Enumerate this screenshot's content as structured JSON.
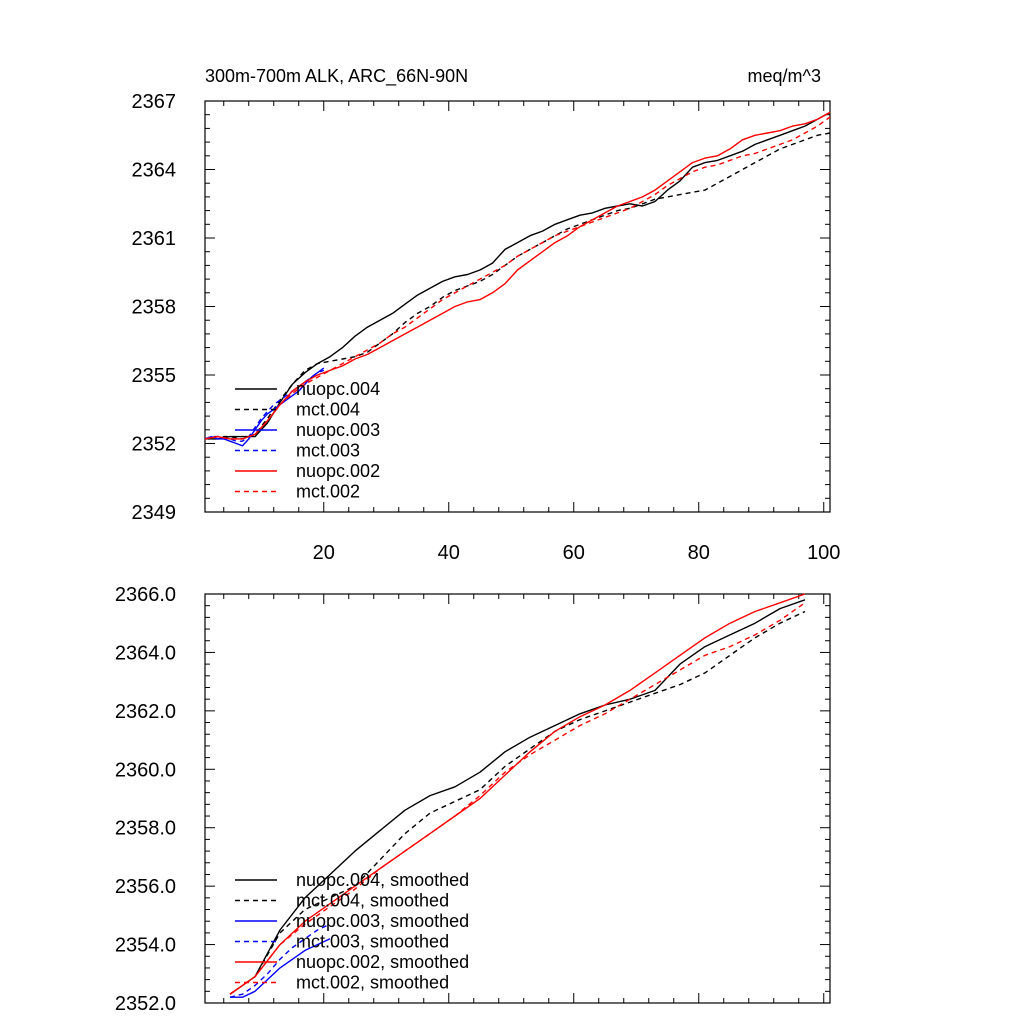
{
  "figure": {
    "title_left": "300m-700m ALK, ARC_66N-90N",
    "title_right": "meq/m^3"
  },
  "colors": {
    "black": "#000000",
    "blue": "#0000ff",
    "red": "#ff0000"
  },
  "chart_data": [
    {
      "type": "line",
      "title": "300m-700m ALK, ARC_66N-90N",
      "units": "meq/m^3",
      "xlabel": "",
      "ylabel": "",
      "xlim": [
        1,
        101
      ],
      "ylim": [
        2349,
        2367
      ],
      "xticks": [
        20,
        40,
        60,
        80,
        100
      ],
      "xtick_labels": [
        "20",
        "40",
        "60",
        "80",
        "100"
      ],
      "yticks": [
        2349,
        2352,
        2355,
        2358,
        2361,
        2364,
        2367
      ],
      "ytick_labels": [
        "2349",
        "2352",
        "2355",
        "2358",
        "2361",
        "2364",
        "2367"
      ],
      "legend_position": "bottom-left",
      "series": [
        {
          "name": "nuopc.004",
          "color": "#000000",
          "dash": "solid",
          "x": [
            1,
            3,
            5,
            7,
            9,
            11,
            13,
            15,
            17,
            19,
            21,
            23,
            25,
            27,
            29,
            31,
            33,
            35,
            37,
            39,
            41,
            43,
            45,
            47,
            49,
            51,
            53,
            55,
            57,
            59,
            61,
            63,
            65,
            67,
            69,
            71,
            73,
            75,
            77,
            79,
            81,
            83,
            85,
            87,
            89,
            91,
            93,
            95,
            97,
            99,
            101
          ],
          "y": [
            2352.2,
            2352.2,
            2352.3,
            2352.3,
            2352.3,
            2352.9,
            2353.8,
            2354.6,
            2355.1,
            2355.5,
            2355.8,
            2356.2,
            2356.7,
            2357.1,
            2357.4,
            2357.7,
            2358.1,
            2358.5,
            2358.8,
            2359.1,
            2359.3,
            2359.4,
            2359.6,
            2359.9,
            2360.5,
            2360.8,
            2361.1,
            2361.3,
            2361.6,
            2361.8,
            2362.0,
            2362.1,
            2362.3,
            2362.4,
            2362.5,
            2362.4,
            2362.6,
            2363.1,
            2363.5,
            2364.1,
            2364.3,
            2364.4,
            2364.6,
            2364.8,
            2365.1,
            2365.3,
            2365.5,
            2365.7,
            2365.9,
            2366.2,
            2366.5
          ]
        },
        {
          "name": "mct.004",
          "color": "#000000",
          "dash": "dashed",
          "x": [
            1,
            3,
            5,
            7,
            9,
            11,
            13,
            15,
            17,
            19,
            21,
            23,
            25,
            27,
            29,
            31,
            33,
            35,
            37,
            39,
            41,
            43,
            45,
            47,
            49,
            51,
            53,
            55,
            57,
            59,
            61,
            63,
            65,
            67,
            69,
            71,
            73,
            75,
            77,
            79,
            81,
            83,
            85,
            87,
            89,
            91,
            93,
            95,
            97,
            99,
            101
          ],
          "y": [
            2352.2,
            2352.3,
            2352.3,
            2352.2,
            2352.4,
            2353.1,
            2353.9,
            2354.6,
            2355.2,
            2355.5,
            2355.6,
            2355.7,
            2355.8,
            2356.0,
            2356.4,
            2356.8,
            2357.3,
            2357.7,
            2358.0,
            2358.4,
            2358.7,
            2358.9,
            2359.1,
            2359.4,
            2359.8,
            2360.2,
            2360.5,
            2360.8,
            2361.1,
            2361.4,
            2361.6,
            2361.8,
            2362.0,
            2362.2,
            2362.3,
            2362.5,
            2362.7,
            2362.8,
            2362.9,
            2363.0,
            2363.1,
            2363.4,
            2363.7,
            2364.0,
            2364.3,
            2364.6,
            2364.9,
            2365.1,
            2365.3,
            2365.5,
            2365.6
          ]
        },
        {
          "name": "nuopc.003",
          "color": "#0000ff",
          "dash": "solid",
          "x": [
            1,
            2,
            3,
            4,
            5,
            6,
            7,
            8,
            9,
            10,
            11,
            12,
            13,
            14,
            15,
            16,
            17,
            18,
            19,
            20
          ],
          "y": [
            2352.2,
            2352.3,
            2352.2,
            2352.2,
            2352.1,
            2352.0,
            2351.9,
            2352.2,
            2352.6,
            2353.0,
            2353.3,
            2353.5,
            2353.7,
            2353.9,
            2354.1,
            2354.3,
            2354.6,
            2354.9,
            2355.1,
            2355.3
          ]
        },
        {
          "name": "mct.003",
          "color": "#0000ff",
          "dash": "dashed",
          "x": [
            1,
            2,
            3,
            4,
            5,
            6,
            7,
            8,
            9,
            10,
            11,
            12,
            13,
            14,
            15,
            16,
            17,
            18,
            19,
            20
          ],
          "y": [
            2352.2,
            2352.3,
            2352.3,
            2352.2,
            2352.2,
            2352.1,
            2352.1,
            2352.3,
            2352.7,
            2353.1,
            2353.4,
            2353.7,
            2353.9,
            2354.1,
            2354.3,
            2354.5,
            2354.7,
            2354.9,
            2355.1,
            2355.2
          ]
        },
        {
          "name": "nuopc.002",
          "color": "#ff0000",
          "dash": "solid",
          "x": [
            1,
            3,
            5,
            7,
            9,
            11,
            13,
            15,
            17,
            19,
            21,
            23,
            25,
            27,
            29,
            31,
            33,
            35,
            37,
            39,
            41,
            43,
            45,
            47,
            49,
            51,
            53,
            55,
            57,
            59,
            61,
            63,
            65,
            67,
            69,
            71,
            73,
            75,
            77,
            79,
            81,
            83,
            85,
            87,
            89,
            91,
            93,
            95,
            97,
            99,
            101
          ],
          "y": [
            2352.2,
            2352.3,
            2352.2,
            2352.2,
            2352.4,
            2353.0,
            2353.7,
            2354.3,
            2354.7,
            2355.0,
            2355.2,
            2355.4,
            2355.7,
            2355.9,
            2356.2,
            2356.5,
            2356.8,
            2357.1,
            2357.4,
            2357.7,
            2358.0,
            2358.2,
            2358.3,
            2358.6,
            2359.0,
            2359.6,
            2360.0,
            2360.4,
            2360.8,
            2361.1,
            2361.5,
            2361.8,
            2362.1,
            2362.4,
            2362.6,
            2362.8,
            2363.1,
            2363.5,
            2363.9,
            2364.3,
            2364.5,
            2364.6,
            2364.9,
            2365.3,
            2365.5,
            2365.6,
            2365.7,
            2365.9,
            2366.0,
            2366.2,
            2366.5
          ]
        },
        {
          "name": "mct.002",
          "color": "#ff0000",
          "dash": "dashed",
          "x": [
            1,
            3,
            5,
            7,
            9,
            11,
            13,
            15,
            17,
            19,
            21,
            23,
            25,
            27,
            29,
            31,
            33,
            35,
            37,
            39,
            41,
            43,
            45,
            47,
            49,
            51,
            53,
            55,
            57,
            59,
            61,
            63,
            65,
            67,
            69,
            71,
            73,
            75,
            77,
            79,
            81,
            83,
            85,
            87,
            89,
            91,
            93,
            95,
            97,
            99,
            101
          ],
          "y": [
            2352.2,
            2352.3,
            2352.2,
            2352.2,
            2352.4,
            2353.0,
            2353.7,
            2354.2,
            2354.6,
            2354.9,
            2355.2,
            2355.5,
            2355.8,
            2356.1,
            2356.4,
            2356.8,
            2357.1,
            2357.5,
            2357.9,
            2358.3,
            2358.6,
            2358.9,
            2359.2,
            2359.5,
            2359.8,
            2360.2,
            2360.5,
            2360.8,
            2361.1,
            2361.3,
            2361.5,
            2361.7,
            2361.9,
            2362.1,
            2362.3,
            2362.6,
            2362.9,
            2363.3,
            2363.6,
            2363.9,
            2364.1,
            2364.2,
            2364.4,
            2364.6,
            2364.7,
            2364.9,
            2365.1,
            2365.3,
            2365.6,
            2365.9,
            2366.3
          ]
        }
      ]
    },
    {
      "type": "line",
      "title": "",
      "xlabel": "",
      "ylabel": "",
      "xlim": [
        1,
        101
      ],
      "ylim": [
        2352.0,
        2366.0
      ],
      "xticks": [
        20,
        40,
        60,
        80,
        100
      ],
      "xtick_labels": [],
      "yticks": [
        2352.0,
        2354.0,
        2356.0,
        2358.0,
        2360.0,
        2362.0,
        2364.0,
        2366.0
      ],
      "ytick_labels": [
        "2352.0",
        "2354.0",
        "2356.0",
        "2358.0",
        "2360.0",
        "2362.0",
        "2364.0",
        "2366.0"
      ],
      "legend_position": "bottom-left",
      "series": [
        {
          "name": "nuopc.004, smoothed",
          "color": "#000000",
          "dash": "solid",
          "x": [
            5,
            9,
            13,
            17,
            21,
            25,
            29,
            33,
            37,
            41,
            45,
            49,
            53,
            57,
            61,
            65,
            69,
            73,
            77,
            81,
            85,
            89,
            93,
            97
          ],
          "y": [
            2352.3,
            2352.9,
            2354.5,
            2355.6,
            2356.4,
            2357.2,
            2357.9,
            2358.6,
            2359.1,
            2359.4,
            2359.9,
            2360.6,
            2361.1,
            2361.5,
            2361.9,
            2362.2,
            2362.4,
            2362.7,
            2363.6,
            2364.2,
            2364.6,
            2365.0,
            2365.5,
            2365.8
          ]
        },
        {
          "name": "mct.004, smoothed",
          "color": "#000000",
          "dash": "dashed",
          "x": [
            5,
            9,
            13,
            17,
            21,
            25,
            29,
            33,
            37,
            41,
            45,
            49,
            53,
            57,
            61,
            65,
            69,
            73,
            77,
            81,
            85,
            89,
            93,
            97
          ],
          "y": [
            2352.3,
            2352.9,
            2354.4,
            2355.2,
            2355.6,
            2356.0,
            2356.9,
            2357.8,
            2358.5,
            2358.9,
            2359.3,
            2360.1,
            2360.7,
            2361.3,
            2361.7,
            2362.0,
            2362.3,
            2362.6,
            2362.9,
            2363.3,
            2363.9,
            2364.5,
            2365.0,
            2365.4
          ]
        },
        {
          "name": "nuopc.003, smoothed",
          "color": "#0000ff",
          "dash": "solid",
          "x": [
            5,
            7,
            9,
            11,
            13,
            15,
            17,
            19,
            21
          ],
          "y": [
            2352.2,
            2352.2,
            2352.4,
            2352.8,
            2353.2,
            2353.5,
            2353.8,
            2354.0,
            2354.2
          ]
        },
        {
          "name": "mct.003, smoothed",
          "color": "#0000ff",
          "dash": "dashed",
          "x": [
            5,
            7,
            9,
            11,
            13,
            15,
            17,
            19,
            21
          ],
          "y": [
            2352.2,
            2352.3,
            2352.6,
            2353.0,
            2353.5,
            2353.9,
            2354.2,
            2354.5,
            2354.7
          ]
        },
        {
          "name": "nuopc.002, smoothed",
          "color": "#ff0000",
          "dash": "solid",
          "x": [
            5,
            9,
            13,
            17,
            21,
            25,
            29,
            33,
            37,
            41,
            45,
            49,
            53,
            57,
            61,
            65,
            69,
            73,
            77,
            81,
            85,
            89,
            93,
            97
          ],
          "y": [
            2352.3,
            2352.9,
            2354.0,
            2354.8,
            2355.4,
            2356.0,
            2356.6,
            2357.2,
            2357.8,
            2358.4,
            2359.0,
            2359.8,
            2360.6,
            2361.3,
            2361.8,
            2362.2,
            2362.7,
            2363.3,
            2363.9,
            2364.5,
            2365.0,
            2365.4,
            2365.7,
            2366.0
          ]
        },
        {
          "name": "mct.002, smoothed",
          "color": "#ff0000",
          "dash": "dashed",
          "x": [
            5,
            9,
            13,
            17,
            21,
            25,
            29,
            33,
            37,
            41,
            45,
            49,
            53,
            57,
            61,
            65,
            69,
            73,
            77,
            81,
            85,
            89,
            93,
            97
          ],
          "y": [
            2352.3,
            2352.9,
            2354.0,
            2354.7,
            2355.3,
            2355.9,
            2356.6,
            2357.2,
            2357.8,
            2358.4,
            2359.1,
            2359.9,
            2360.5,
            2361.0,
            2361.5,
            2361.9,
            2362.4,
            2362.9,
            2363.4,
            2363.9,
            2364.2,
            2364.6,
            2365.1,
            2365.7
          ]
        }
      ]
    }
  ]
}
